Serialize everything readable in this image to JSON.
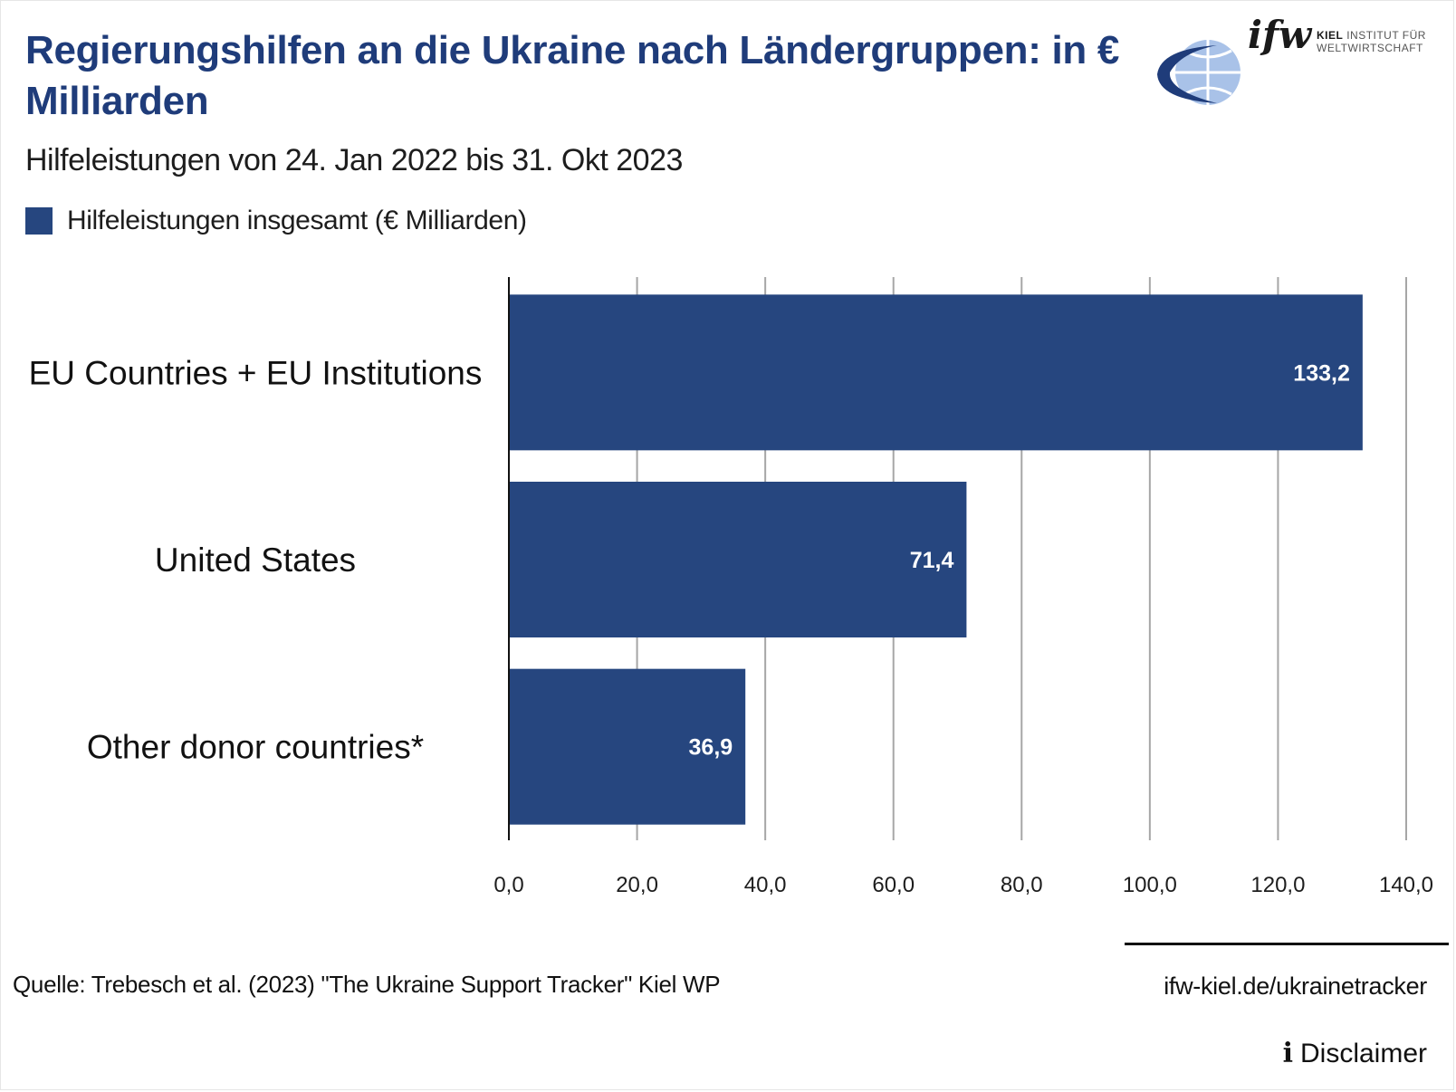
{
  "header": {
    "title": "Regierungshilfen an die Ukraine nach Ländergruppen: in € Milliarden",
    "subtitle": "Hilfeleistungen von 24. Jan 2022 bis 31. Okt 2023"
  },
  "logo": {
    "word": "ifw",
    "line1_bold": "KIEL",
    "line1_rest": "INSTITUT FÜR",
    "line2": "WELTWIRTSCHAFT",
    "icon": "globe-icon"
  },
  "colors": {
    "bar": "#26467f",
    "title": "#1f3c7a",
    "grid": "#a6a6a6"
  },
  "chart_data": {
    "type": "bar",
    "orientation": "horizontal",
    "categories": [
      "EU Countries + EU Institutions",
      "United States",
      "Other donor countries*"
    ],
    "series": [
      {
        "name": "Hilfeleistungen insgesamt (€ Milliarden)",
        "values": [
          133.2,
          71.4,
          36.9
        ]
      }
    ],
    "data_labels": [
      "133,2",
      "71,4",
      "36,9"
    ],
    "xlim": [
      0,
      140
    ],
    "xticks": [
      "0,0",
      "20,0",
      "40,0",
      "60,0",
      "80,0",
      "100,0",
      "120,0",
      "140,0"
    ],
    "grid": true,
    "legend": "top-left"
  },
  "footer": {
    "source": "Quelle: Trebesch et al. (2023) \"The Ukraine Support Tracker\" Kiel WP",
    "link": "ifw-kiel.de/ukrainetracker",
    "disclaimer_icon": "info-icon",
    "disclaimer": "Disclaimer"
  }
}
